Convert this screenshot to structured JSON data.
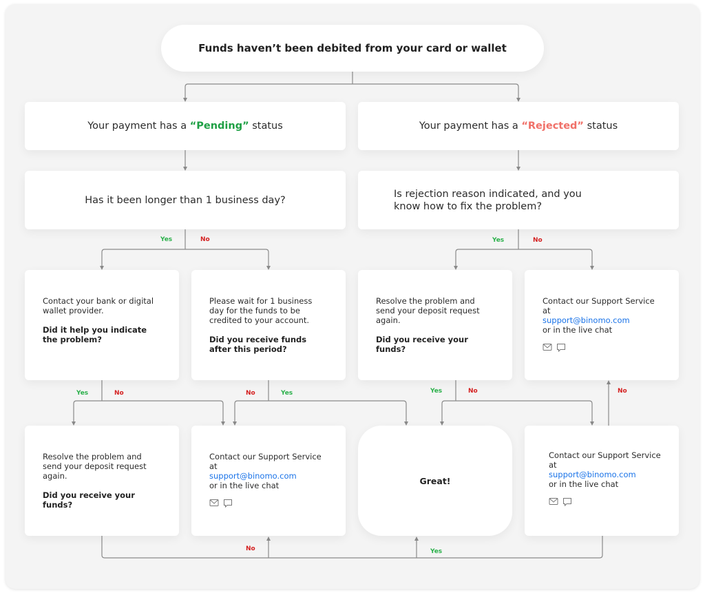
{
  "title": "Funds haven’t been debited from your card or wallet",
  "pending": {
    "prefix": "Your payment has a ",
    "status": "“Pending”",
    "suffix": " status"
  },
  "rejected": {
    "prefix": "Your payment has a ",
    "status": "“Rejected”",
    "suffix": " status"
  },
  "q_left": "Has it been longer than 1 business day?",
  "q_right": "Is rejection reason indicated, and you know how to fix the problem?",
  "cards": {
    "bank": {
      "text": "Contact your bank or digital wallet provider.",
      "question": "Did it help you indicate the problem?"
    },
    "wait": {
      "text": "Please wait for 1 business day for the funds to be credited to your account.",
      "question": "Did you receive funds after this period?"
    },
    "resolve_right": {
      "text": "Resolve the problem and send your deposit request again.",
      "question": "Did you receive your funds?"
    },
    "support_top": {
      "text": "Contact our Support Service at",
      "email": "support@binomo.com",
      "tail": "or in the live chat"
    },
    "resolve_left": {
      "text": "Resolve the problem and send your deposit request again.",
      "question": "Did you receive your funds?"
    },
    "support_mid": {
      "text": "Contact our Support Service at",
      "email": "support@binomo.com",
      "tail": "or in the live chat"
    },
    "great": "Great!",
    "support_right": {
      "text": "Contact our Support Service at",
      "email": "support@binomo.com",
      "tail": "or in the live chat"
    }
  },
  "labels": {
    "yes": "Yes",
    "no": "No"
  },
  "colors": {
    "yes": "#2ab04a",
    "no": "#d42020",
    "pending": "#1fa045",
    "rejected": "#f07068",
    "link": "#1a73e8",
    "line": "#8a8a8a"
  },
  "icons": [
    "mail-icon",
    "chat-icon"
  ]
}
